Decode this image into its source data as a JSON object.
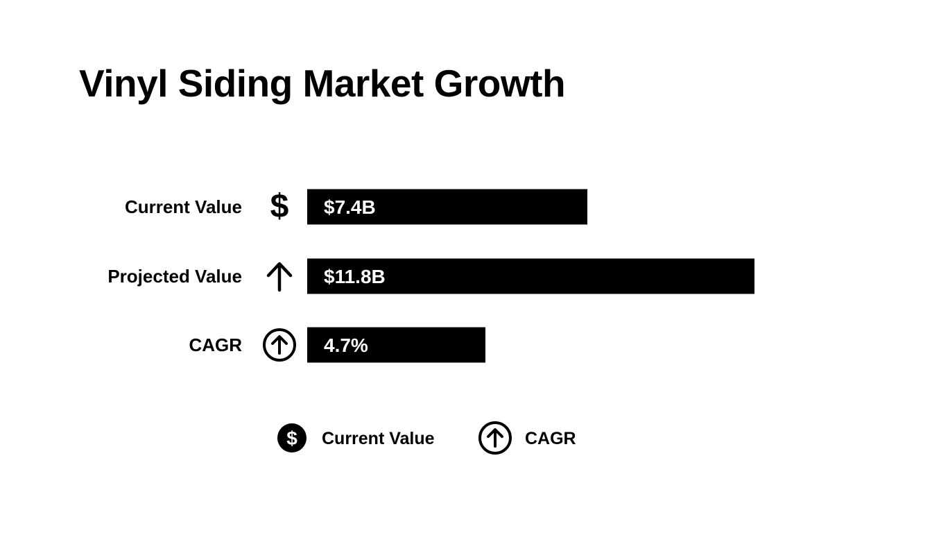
{
  "chart_data": {
    "type": "bar",
    "title": "Vinyl Siding Market Growth",
    "categories": [
      "Current Value",
      "Projected Value",
      "CAGR"
    ],
    "values": [
      7.4,
      11.8,
      4.7
    ],
    "value_labels": [
      "$7.4B",
      "$11.8B",
      "4.7%"
    ],
    "units": [
      "$B",
      "$B",
      "%"
    ],
    "row_icons": [
      "dollar-icon",
      "arrow-up-icon",
      "arrow-up-circle-icon"
    ],
    "bar_color": "#000000",
    "value_label_color": "#ffffff",
    "orientation": "horizontal",
    "grid": false,
    "legend": {
      "placement": "bottom-center",
      "items": [
        {
          "label": "Current Value",
          "icon": "dollar-circle-icon"
        },
        {
          "label": "CAGR",
          "icon": "arrow-up-circle-icon"
        }
      ]
    }
  }
}
